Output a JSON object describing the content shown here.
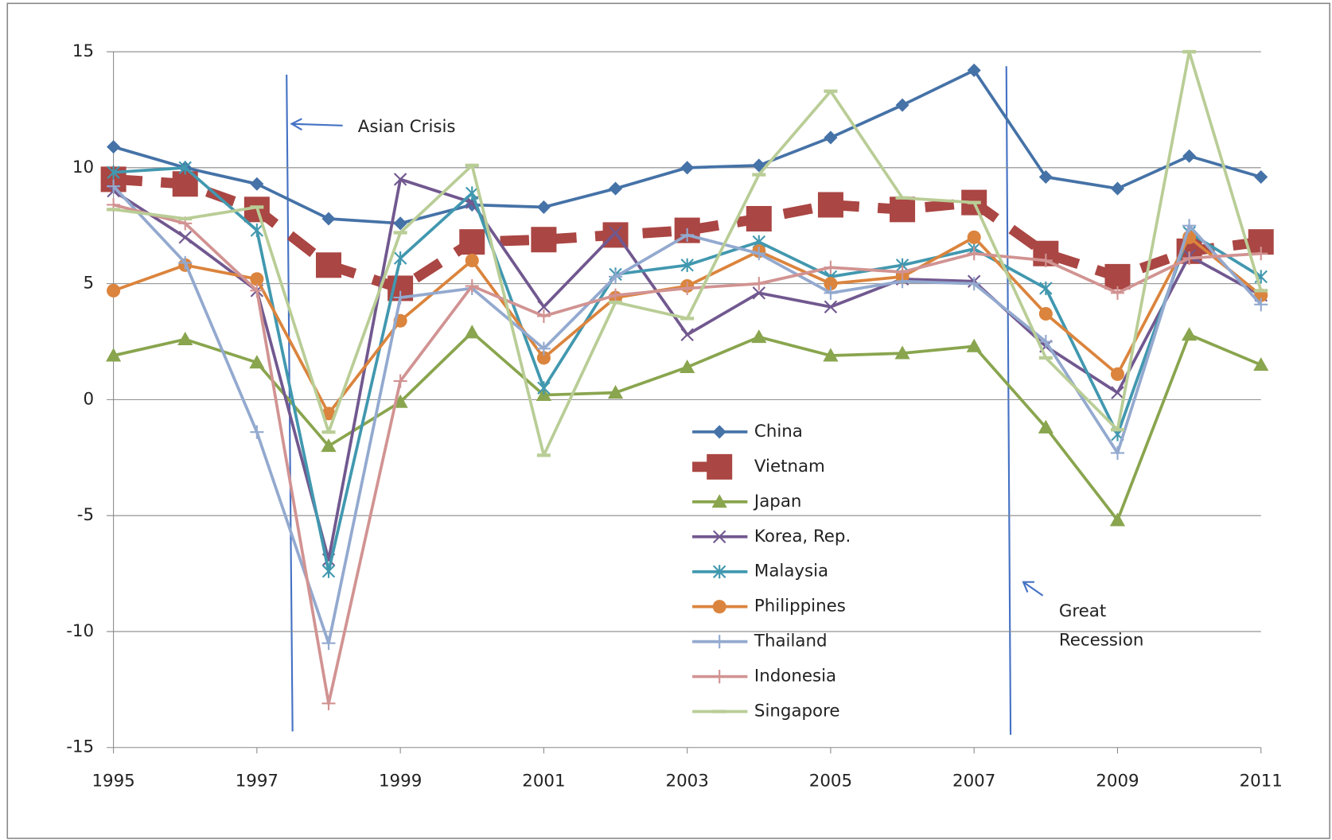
{
  "chart_data": {
    "type": "line",
    "annotations": [
      "Asian Crisis",
      "Great Recession"
    ],
    "x": [
      1995,
      1996,
      1997,
      1998,
      1999,
      2000,
      2001,
      2002,
      2003,
      2004,
      2005,
      2006,
      2007,
      2008,
      2009,
      2010,
      2011
    ],
    "xlim": [
      1995,
      2011
    ],
    "xticks": [
      1995,
      1997,
      1999,
      2001,
      2003,
      2005,
      2007,
      2009,
      2011
    ],
    "ylim": [
      -15,
      15
    ],
    "yticks": [
      -15,
      -10,
      -5,
      0,
      5,
      10,
      15
    ],
    "grid": true,
    "series": [
      {
        "name": "China",
        "color": "#4572a7",
        "marker": "diamond",
        "values": [
          10.9,
          10.0,
          9.3,
          7.8,
          7.6,
          8.4,
          8.3,
          9.1,
          10.0,
          10.1,
          11.3,
          12.7,
          14.2,
          9.6,
          9.1,
          10.5,
          9.6
        ]
      },
      {
        "name": "Vietnam",
        "color": "#aa4643",
        "marker": "square",
        "dashed": true,
        "values": [
          9.5,
          9.3,
          8.2,
          5.8,
          4.8,
          6.8,
          6.9,
          7.1,
          7.3,
          7.8,
          8.4,
          8.2,
          8.5,
          6.3,
          5.3,
          6.4,
          6.8
        ]
      },
      {
        "name": "Japan",
        "color": "#89a54e",
        "marker": "triangle",
        "values": [
          1.9,
          2.6,
          1.6,
          -2.0,
          -0.1,
          2.9,
          0.2,
          0.3,
          1.4,
          2.7,
          1.9,
          2.0,
          2.3,
          -1.2,
          -5.2,
          2.8,
          1.5
        ]
      },
      {
        "name": "Korea, Rep.",
        "color": "#71588f",
        "marker": "x",
        "values": [
          9.0,
          7.0,
          4.7,
          -6.9,
          9.5,
          8.5,
          4.0,
          7.2,
          2.8,
          4.6,
          4.0,
          5.2,
          5.1,
          2.3,
          0.3,
          6.2,
          4.5
        ]
      },
      {
        "name": "Malaysia",
        "color": "#4198af",
        "marker": "star",
        "values": [
          9.8,
          10.0,
          7.3,
          -7.4,
          6.1,
          8.9,
          0.5,
          5.4,
          5.8,
          6.8,
          5.3,
          5.8,
          6.5,
          4.8,
          -1.5,
          7.2,
          5.3
        ]
      },
      {
        "name": "Philippines",
        "color": "#db843d",
        "marker": "circle",
        "values": [
          4.7,
          5.8,
          5.2,
          -0.6,
          3.4,
          6.0,
          1.8,
          4.4,
          4.9,
          6.4,
          5.0,
          5.3,
          7.0,
          3.7,
          1.1,
          7.0,
          4.5
        ]
      },
      {
        "name": "Thailand",
        "color": "#93a9cf",
        "marker": "plus",
        "values": [
          9.2,
          5.9,
          -1.4,
          -10.5,
          4.4,
          4.8,
          2.2,
          5.3,
          7.1,
          6.3,
          4.6,
          5.1,
          5.0,
          2.5,
          -2.3,
          7.5,
          4.1
        ]
      },
      {
        "name": "Indonesia",
        "color": "#d19392",
        "marker": "plus",
        "values": [
          8.4,
          7.6,
          4.7,
          -13.1,
          0.8,
          4.9,
          3.6,
          4.5,
          4.8,
          5.0,
          5.7,
          5.5,
          6.3,
          6.0,
          4.6,
          6.1,
          6.3
        ]
      },
      {
        "name": "Singapore",
        "color": "#b9cd96",
        "marker": "dash",
        "values": [
          8.2,
          7.8,
          8.3,
          -1.4,
          7.2,
          10.1,
          -2.4,
          4.2,
          3.5,
          9.7,
          13.3,
          8.7,
          8.5,
          1.8,
          -1.3,
          15.0,
          4.7
        ]
      }
    ]
  }
}
